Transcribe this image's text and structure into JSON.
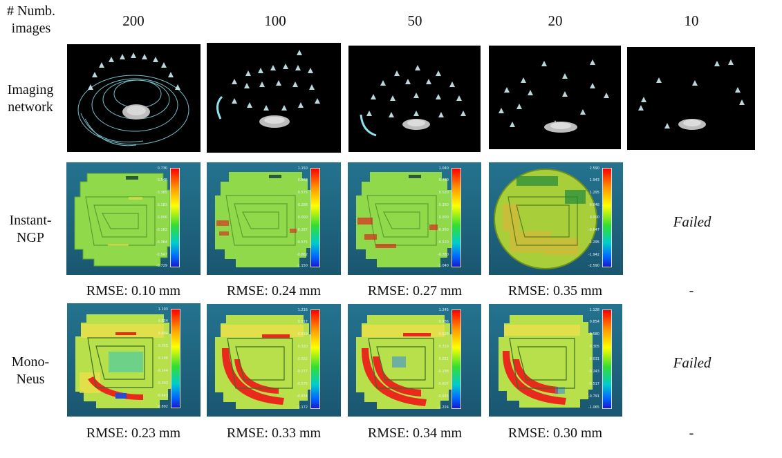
{
  "header": {
    "corner_label": "# Numb.\nimages",
    "columns": [
      "200",
      "100",
      "50",
      "20",
      "10"
    ]
  },
  "rows": {
    "imaging_network": {
      "label": "Imaging\nnetwork"
    },
    "instant_ngp": {
      "label": "Instant-\nNGP",
      "rmse": [
        "RMSE: 0.10 mm",
        "RMSE: 0.24 mm",
        "RMSE: 0.27 mm",
        "RMSE: 0.35 mm",
        "-"
      ],
      "failed_label": "Failed",
      "colorbar_ticks": [
        [
          "0.730",
          "0.548",
          "0.365",
          "0.183",
          "0.000",
          "-0.182",
          "-0.364",
          "-0.547",
          "-0.729"
        ],
        [
          "1.150",
          "0.862",
          "0.575",
          "0.288",
          "0.000",
          "-0.287",
          "-0.575",
          "-0.862",
          "-1.150"
        ],
        [
          "1.040",
          "0.780",
          "0.520",
          "0.260",
          "0.000",
          "-0.260",
          "-0.520",
          "-0.780",
          "-1.040"
        ],
        [
          "2.590",
          "1.943",
          "1.295",
          "0.648",
          "0.000",
          "-0.647",
          "-1.295",
          "-1.942",
          "-2.590"
        ]
      ]
    },
    "mono_neus": {
      "label": "Mono-\nNeus",
      "rmse": [
        "RMSE: 0.23 mm",
        "RMSE: 0.33 mm",
        "RMSE: 0.34 mm",
        "RMSE: 0.30 mm",
        "-"
      ],
      "failed_label": "Failed",
      "colorbar_ticks": [
        [
          "1.103",
          "0.854",
          "0.604",
          "0.355",
          "0.106",
          "-0.144",
          "-0.393",
          "-0.643",
          "-0.892"
        ],
        [
          "1.216",
          "0.917",
          "0.619",
          "0.320",
          "0.022",
          "-0.277",
          "-0.575",
          "-0.874",
          "-1.172"
        ],
        [
          "1.245",
          "0.936",
          "0.628",
          "0.319",
          "0.011",
          "-0.298",
          "-0.607",
          "-0.915",
          "-1.224"
        ],
        [
          "1.128",
          "0.854",
          "0.580",
          "0.305",
          "0.031",
          "-0.243",
          "-0.517",
          "-0.791",
          "-1.065"
        ]
      ]
    }
  }
}
